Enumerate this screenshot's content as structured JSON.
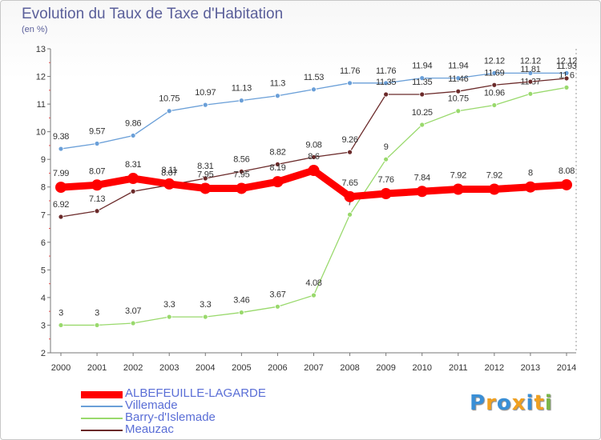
{
  "title": "Evolution du Taux de Taxe d'Habitation",
  "subtitle": "(en %)",
  "brand": "Proxiti",
  "chart_data": {
    "type": "line",
    "x": [
      "2000",
      "2001",
      "2002",
      "2003",
      "2004",
      "2005",
      "2006",
      "2007",
      "2008",
      "2009",
      "2010",
      "2011",
      "2012",
      "2013",
      "2014"
    ],
    "ylim": [
      2,
      13
    ],
    "yticks": [
      2,
      3,
      4,
      5,
      6,
      7,
      8,
      9,
      10,
      11,
      12,
      13
    ],
    "grid": false,
    "legend_position": "bottom-left",
    "series": [
      {
        "name": "ALBEFEUILLE-LAGARDE",
        "color": "#ff0000",
        "values": [
          7.99,
          8.07,
          8.31,
          8.11,
          7.95,
          7.95,
          8.19,
          8.6,
          7.65,
          7.76,
          7.84,
          7.92,
          7.92,
          8,
          8.08
        ]
      },
      {
        "name": "Villemade",
        "color": "#6a9fd8",
        "values": [
          9.38,
          9.57,
          9.86,
          10.75,
          10.97,
          11.13,
          11.3,
          11.53,
          11.76,
          11.76,
          11.94,
          11.94,
          12.12,
          12.12,
          12.12
        ]
      },
      {
        "name": "Barry-d'Islemade",
        "color": "#99d96c",
        "values": [
          3,
          3,
          3.07,
          3.3,
          3.3,
          3.46,
          3.67,
          4.08,
          7,
          9,
          10.25,
          10.75,
          10.96,
          11.37,
          11.6
        ]
      },
      {
        "name": "Meauzac",
        "color": "#6b2a2a",
        "values": [
          6.92,
          7.13,
          7.84,
          8.07,
          8.31,
          8.56,
          8.82,
          9.08,
          9.26,
          11.35,
          11.35,
          11.46,
          11.69,
          11.81,
          11.93
        ]
      }
    ]
  }
}
